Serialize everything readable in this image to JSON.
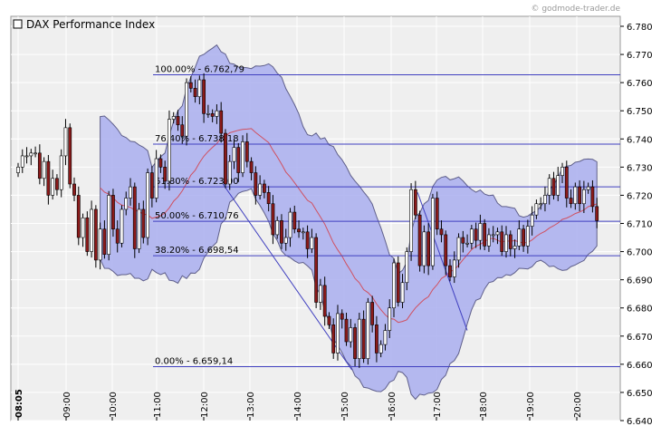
{
  "watermark": "© godmode-trader.de",
  "chart_data": {
    "type": "candlestick",
    "title": "DAX Performance Index",
    "x_tick_labels": [
      "08:05",
      "09:00",
      "10:00",
      "11:00",
      "12:00",
      "13:00",
      "14:00",
      "15:00",
      "16:00",
      "17:00",
      "18:00",
      "19:00",
      "20:00"
    ],
    "y_ticks": [
      "6.640",
      "6.650",
      "6.660",
      "6.670",
      "6.680",
      "6.690",
      "6.700",
      "6.710",
      "6.720",
      "6.730",
      "6.740",
      "6.750",
      "6.760",
      "6.770",
      "6.780"
    ],
    "ylim": [
      6640,
      6782
    ],
    "grid": true,
    "fibonacci": [
      {
        "label": "100.00% - 6.762,79",
        "value": 6762.79
      },
      {
        "label": "76.40% - 6.738,18",
        "value": 6738.18
      },
      {
        "label": "61.80% - 6.723,00",
        "value": 6723.0
      },
      {
        "label": "50.00% - 6.710,76",
        "value": 6710.76
      },
      {
        "label": "38.20% - 6.698,54",
        "value": 6698.54
      },
      {
        "label": "0.00% - 6.659,14",
        "value": 6659.14
      }
    ],
    "trendlines": [
      {
        "from": [
          "12:25",
          6724
        ],
        "to": [
          "15:10",
          6658
        ]
      },
      {
        "from": [
          "16:35",
          6721
        ],
        "to": [
          "17:40",
          6672
        ]
      }
    ],
    "series": {
      "close": [
        6730,
        6734,
        6734,
        6735,
        6735,
        6726,
        6732,
        6720,
        6726,
        6722,
        6734,
        6744,
        6724,
        6720,
        6705,
        6712,
        6700,
        6715,
        6697,
        6708,
        6699,
        6720,
        6708,
        6703,
        6715,
        6719,
        6723,
        6701,
        6715,
        6705,
        6728,
        6719,
        6733,
        6730,
        6725,
        6747,
        6748,
        6745,
        6741,
        6760,
        6758,
        6755,
        6761,
        6749,
        6749,
        6748,
        6750,
        6742,
        6724,
        6732,
        6737,
        6728,
        6739,
        6732,
        6728,
        6720,
        6724,
        6721,
        6717,
        6706,
        6711,
        6703,
        6705,
        6714,
        6708,
        6707,
        6707,
        6701,
        6705,
        6682,
        6688,
        6677,
        6674,
        6664,
        6678,
        6676,
        6668,
        6673,
        6662,
        6676,
        6662,
        6682,
        6674,
        6664,
        6667,
        6672,
        6680,
        6696,
        6682,
        6689,
        6700,
        6722,
        6713,
        6695,
        6707,
        6695,
        6719,
        6708,
        6706,
        6695,
        6691,
        6697,
        6705,
        6703,
        6703,
        6708,
        6704,
        6710,
        6702,
        6706,
        6706,
        6707,
        6700,
        6706,
        6701,
        6702,
        6708,
        6702,
        6709,
        6713,
        6717,
        6717,
        6720,
        6726,
        6720,
        6727,
        6730,
        6719,
        6717,
        6723,
        6717,
        6722,
        6723,
        6716,
        6711
      ]
    }
  }
}
